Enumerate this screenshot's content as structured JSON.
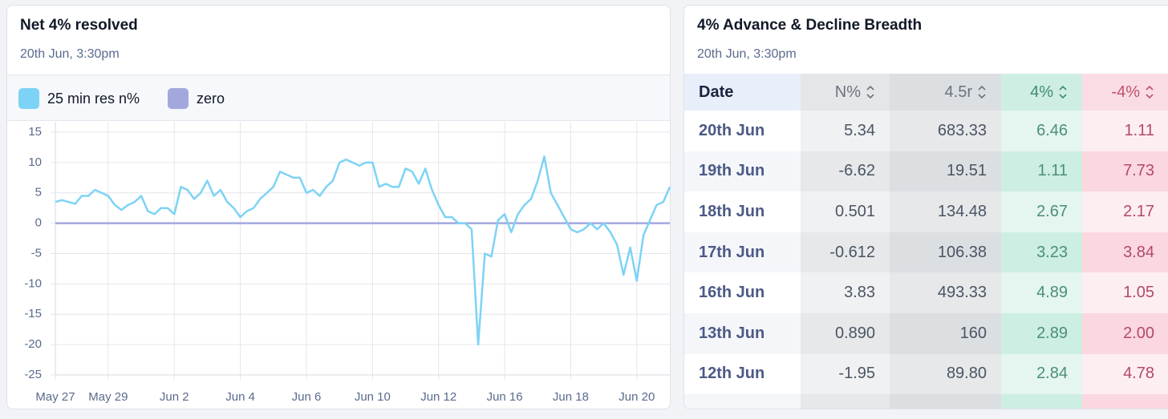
{
  "chart_data": {
    "type": "line",
    "title": "Net 4% resolved",
    "subtitle": "20th Jun, 3:30pm",
    "xlim": [
      0,
      93
    ],
    "xticks": [
      {
        "value": 0,
        "label": "May 27"
      },
      {
        "value": 8,
        "label": "May 29"
      },
      {
        "value": 18,
        "label": "Jun 2"
      },
      {
        "value": 28,
        "label": "Jun 4"
      },
      {
        "value": 38,
        "label": "Jun 6"
      },
      {
        "value": 48,
        "label": "Jun 10"
      },
      {
        "value": 58,
        "label": "Jun 12"
      },
      {
        "value": 68,
        "label": "Jun 16"
      },
      {
        "value": 78,
        "label": "Jun 18"
      },
      {
        "value": 88,
        "label": "Jun 20"
      }
    ],
    "ylim": [
      -25,
      15
    ],
    "yticks": [
      15,
      10,
      5,
      0,
      -5,
      -10,
      -15,
      -20,
      -25
    ],
    "grid": true,
    "series": [
      {
        "name": "25 min res n%",
        "color": "#7dd3f5",
        "values": [
          3.5,
          3.8,
          3.5,
          3.2,
          4.5,
          4.5,
          5.5,
          5,
          4.5,
          3,
          2.2,
          3,
          3.5,
          4.5,
          2,
          1.5,
          2.5,
          2.5,
          1.5,
          6,
          5.5,
          4,
          5,
          7,
          4.5,
          5.5,
          3.5,
          2.5,
          1,
          2,
          2.5,
          4,
          5,
          6,
          8.5,
          8,
          7.5,
          7.5,
          5,
          5.5,
          4.5,
          6,
          7,
          10,
          10.5,
          10,
          9.5,
          10,
          10,
          6,
          6.5,
          6,
          6,
          9,
          8.5,
          6.5,
          9,
          5.5,
          3,
          1,
          1,
          0,
          0,
          -1,
          -20,
          -5,
          -5.5,
          0.5,
          1.5,
          -1.5,
          1.5,
          3,
          4,
          7,
          11,
          5,
          3,
          1,
          -1,
          -1.5,
          -1,
          0,
          -1,
          0,
          -1.5,
          -3.5,
          -8.5,
          -4,
          -9.5,
          -2,
          0.5,
          3,
          3.5,
          6
        ]
      },
      {
        "name": "zero",
        "color": "#a3a8dc",
        "values": [
          0,
          0,
          0,
          0,
          0,
          0,
          0,
          0,
          0,
          0,
          0,
          0,
          0,
          0,
          0,
          0,
          0,
          0,
          0,
          0,
          0,
          0,
          0,
          0,
          0,
          0,
          0,
          0,
          0,
          0,
          0,
          0,
          0,
          0,
          0,
          0,
          0,
          0,
          0,
          0,
          0,
          0,
          0,
          0,
          0,
          0,
          0,
          0,
          0,
          0,
          0,
          0,
          0,
          0,
          0,
          0,
          0,
          0,
          0,
          0,
          0,
          0,
          0,
          0,
          0,
          0,
          0,
          0,
          0,
          0,
          0,
          0,
          0,
          0,
          0,
          0,
          0,
          0,
          0,
          0,
          0,
          0,
          0,
          0,
          0,
          0,
          0,
          0,
          0,
          0,
          0,
          0,
          0,
          0
        ]
      }
    ]
  },
  "table": {
    "title": "4% Advance & Decline Breadth",
    "subtitle": "20th Jun, 3:30pm",
    "columns": [
      "Date",
      "N%",
      "4.5r",
      "4%",
      "-4%"
    ],
    "rows": [
      [
        "20th Jun",
        "5.34",
        "683.33",
        "6.46",
        "1.11"
      ],
      [
        "19th Jun",
        "-6.62",
        "19.51",
        "1.11",
        "7.73"
      ],
      [
        "18th Jun",
        "0.501",
        "134.48",
        "2.67",
        "2.17"
      ],
      [
        "17th Jun",
        "-0.612",
        "106.38",
        "3.23",
        "3.84"
      ],
      [
        "16th Jun",
        "3.83",
        "493.33",
        "4.89",
        "1.05"
      ],
      [
        "13th Jun",
        "0.890",
        "160",
        "2.89",
        "2.00"
      ],
      [
        "12th Jun",
        "-1.95",
        "89.80",
        "2.84",
        "4.78"
      ]
    ]
  }
}
